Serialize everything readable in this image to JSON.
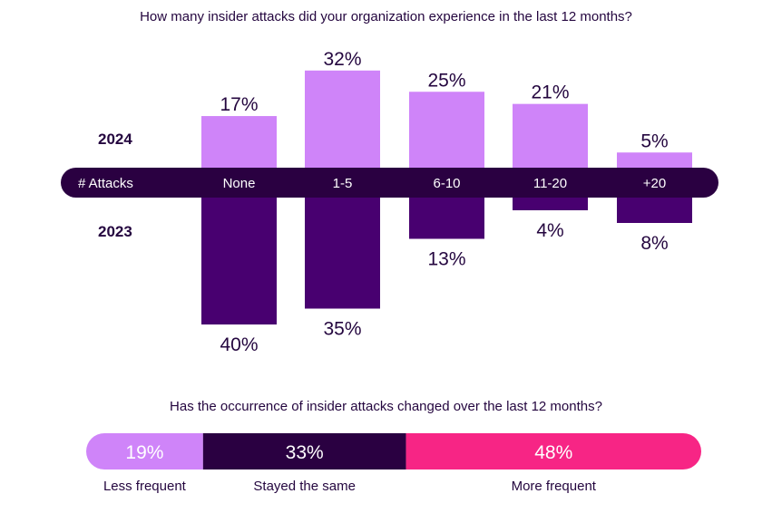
{
  "chart_data": [
    {
      "type": "bar",
      "title": "How many insider attacks did your organization experience in the last 12 months?",
      "axis_label": "# Attacks",
      "categories": [
        "None",
        "1-5",
        "6-10",
        "11-20",
        "+20"
      ],
      "series": [
        {
          "name": "2024",
          "values": [
            17,
            32,
            25,
            21,
            5
          ],
          "labels": [
            "17%",
            "32%",
            "25%",
            "21%",
            "5%"
          ],
          "color": "#cf84f9",
          "direction": "up"
        },
        {
          "name": "2023",
          "values": [
            40,
            35,
            13,
            4,
            8
          ],
          "labels": [
            "40%",
            "35%",
            "13%",
            "4%",
            "8%"
          ],
          "color": "#480070",
          "direction": "down"
        }
      ],
      "unit": "%"
    },
    {
      "type": "bar",
      "subtype": "stacked-100",
      "title": "Has the occurrence of insider attacks changed over the last 12 months?",
      "categories": [
        "Less frequent",
        "Stayed the same",
        "More frequent"
      ],
      "values": [
        19,
        33,
        48
      ],
      "labels": [
        "19%",
        "33%",
        "48%"
      ],
      "colors": [
        "#cf84f9",
        "#2a0041",
        "#f72585"
      ]
    }
  ],
  "colors": {
    "band": "#2a0041",
    "text": "#24063f"
  }
}
